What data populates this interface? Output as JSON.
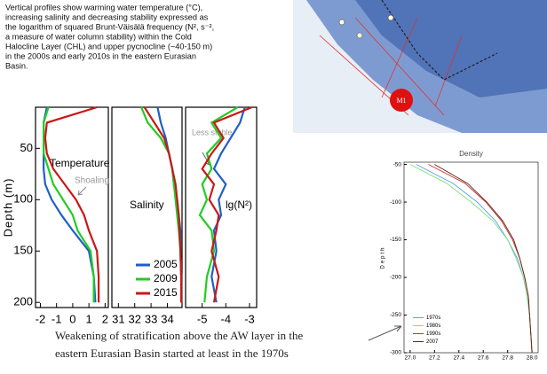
{
  "caption": [
    "Vertical profiles show warming water temperature (°C),",
    "increasing salinity and decreasing stability expressed as",
    "the logarithm of squared Brunt-Väisälä frequency (N², s⁻²,",
    "a measure of water column stability) within the Cold",
    "Halocline Layer (CHL) and upper pycnocline (~40-150 m)",
    "in the 2000s and early 2010s in the eastern Eurasian",
    "Basin."
  ],
  "map": {
    "marker_label": "M1"
  },
  "note": [
    "Weakening of stratification above the AW layer in the",
    "eastern Eurasian Basin started at least in the 1970s"
  ],
  "chart_data": [
    {
      "type": "line",
      "label": "Temperature",
      "annotation": "Shoaling",
      "y_label": "Depth (m)",
      "y": [
        10,
        25,
        40,
        55,
        70,
        85,
        100,
        115,
        130,
        150,
        175,
        200
      ],
      "xlim": [
        -2.3,
        2.2
      ],
      "xticks": [
        -2,
        -1,
        0,
        1,
        2
      ],
      "ylim": [
        10,
        205
      ],
      "yticks": [
        50,
        100,
        150,
        200
      ],
      "legend": false,
      "series": [
        {
          "name": "2005",
          "color": "#1f5fc8",
          "values": [
            -1.6,
            -1.8,
            -1.8,
            -1.8,
            -1.8,
            -1.7,
            -1.3,
            -0.7,
            0,
            1.0,
            1.3,
            1.4
          ]
        },
        {
          "name": "2009",
          "color": "#22cc22",
          "values": [
            -1.5,
            -1.8,
            -1.8,
            -1.8,
            -1.5,
            -1.2,
            -0.6,
            0,
            0.3,
            1.1,
            1.3,
            1.3
          ]
        },
        {
          "name": "2015",
          "color": "#c81818",
          "values": [
            1.5,
            -1.6,
            -1.7,
            -1.6,
            -1.2,
            -0.5,
            0.2,
            0.7,
            1.0,
            1.5,
            1.6,
            1.6
          ]
        }
      ]
    },
    {
      "type": "line",
      "label": "Salinity",
      "y": [
        10,
        25,
        40,
        55,
        70,
        85,
        100,
        115,
        130,
        150,
        175,
        200
      ],
      "xlim": [
        30.6,
        34.9
      ],
      "xticks": [
        31,
        32,
        33,
        34
      ],
      "ylim": [
        10,
        205
      ],
      "legend": "lower right",
      "series": [
        {
          "name": "2005",
          "color": "#1f5fc8",
          "values": [
            33.4,
            33.6,
            33.9,
            34.1,
            34.3,
            34.4,
            34.6,
            34.7,
            34.8,
            34.8,
            34.85,
            34.85
          ]
        },
        {
          "name": "2009",
          "color": "#22cc22",
          "values": [
            32.4,
            32.8,
            33.6,
            34.1,
            34.3,
            34.4,
            34.5,
            34.6,
            34.7,
            34.8,
            34.85,
            34.85
          ]
        },
        {
          "name": "2015",
          "color": "#c81818",
          "values": [
            32.6,
            33.2,
            33.8,
            34.1,
            34.3,
            34.5,
            34.6,
            34.7,
            34.75,
            34.8,
            34.85,
            34.85
          ]
        }
      ]
    },
    {
      "type": "line",
      "label": "lg(N²)",
      "annotation": "Less stable",
      "y": [
        10,
        25,
        40,
        55,
        70,
        85,
        100,
        115,
        130,
        150,
        175,
        200
      ],
      "xlim": [
        -5.7,
        -2.7
      ],
      "xticks": [
        -5,
        -4,
        -3
      ],
      "ylim": [
        10,
        205
      ],
      "legend": false,
      "series": [
        {
          "name": "2005",
          "color": "#1f5fc8",
          "values": [
            -3.2,
            -3.4,
            -3.8,
            -4.2,
            -4.5,
            -4.0,
            -4.3,
            -4.2,
            -4.5,
            -4.4,
            -4.6,
            -4.4
          ]
        },
        {
          "name": "2009",
          "color": "#22cc22",
          "values": [
            -3.5,
            -4.6,
            -4.2,
            -4.8,
            -4.6,
            -5.0,
            -4.8,
            -5.1,
            -4.6,
            -4.5,
            -4.8,
            -4.9
          ]
        },
        {
          "name": "2015",
          "color": "#c81818",
          "values": [
            -2.9,
            -4.5,
            -4.1,
            -4.6,
            -5.0,
            -4.5,
            -4.7,
            -4.3,
            -4.4,
            -4.6,
            -4.3,
            -4.5
          ]
        }
      ]
    },
    {
      "type": "line",
      "title": "Density",
      "y_label": "Depth",
      "y": [
        -50,
        -75,
        -100,
        -125,
        -150,
        -175,
        -200,
        -225,
        -250,
        -275,
        -300
      ],
      "xlim": [
        26.95,
        28.05
      ],
      "xticks": [
        {
          "value": 27.0,
          "label": "27.0"
        },
        27.2,
        27.4,
        27.6,
        27.8,
        {
          "value": 28.0,
          "label": "28.0"
        }
      ],
      "ylim": [
        -47,
        -300
      ],
      "yticks": [
        -50,
        -100,
        -150,
        -200,
        -250,
        -300
      ],
      "legend": "lower left",
      "series": [
        {
          "name": "1970s",
          "color": "#5aa0e6",
          "values": [
            27.05,
            27.35,
            27.55,
            27.7,
            27.8,
            27.88,
            27.93,
            27.96,
            27.98,
            27.99,
            28.0
          ]
        },
        {
          "name": "1980s",
          "color": "#7ee07e",
          "values": [
            27.0,
            27.3,
            27.5,
            27.68,
            27.8,
            27.87,
            27.93,
            27.96,
            27.98,
            27.99,
            28.0
          ]
        },
        {
          "name": "1990s",
          "color": "#d03030",
          "values": [
            27.15,
            27.45,
            27.62,
            27.75,
            27.84,
            27.9,
            27.94,
            27.97,
            27.98,
            27.99,
            28.0
          ]
        },
        {
          "name": "2007",
          "color": "#5a2a1a",
          "values": [
            27.2,
            27.47,
            27.63,
            27.76,
            27.85,
            27.9,
            27.94,
            27.97,
            27.98,
            27.99,
            28.0
          ]
        }
      ]
    }
  ]
}
